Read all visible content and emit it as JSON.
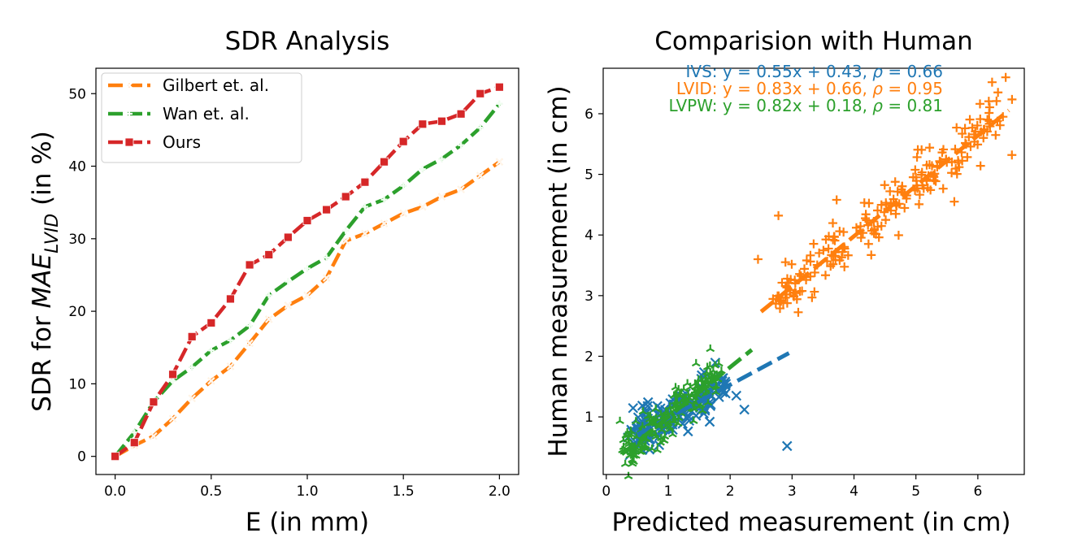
{
  "chart_data": [
    {
      "type": "line",
      "title": "SDR Analysis",
      "xlabel": "E (in mm)",
      "ylabel_prefix": "SDR for ",
      "ylabel_math": "MAE",
      "ylabel_subscript": "LVID",
      "ylabel_suffix": " (in %)",
      "xlim": [
        -0.1,
        2.1
      ],
      "ylim": [
        -2.5,
        53.5
      ],
      "xticks": [
        0.0,
        0.5,
        1.0,
        1.5,
        2.0
      ],
      "xtick_labels": [
        "0.0",
        "0.5",
        "1.0",
        "1.5",
        "2.0"
      ],
      "yticks": [
        0,
        10,
        20,
        30,
        40,
        50
      ],
      "ytick_labels": [
        "0",
        "10",
        "20",
        "30",
        "40",
        "50"
      ],
      "legend_position": "upper-left",
      "x": [
        0.0,
        0.1,
        0.2,
        0.3,
        0.4,
        0.5,
        0.6,
        0.7,
        0.8,
        0.9,
        1.0,
        1.1,
        1.2,
        1.3,
        1.4,
        1.5,
        1.6,
        1.7,
        1.8,
        1.9,
        2.0
      ],
      "series": [
        {
          "name": "Gilbert et. al.",
          "color": "#ff7f0e",
          "marker": "x",
          "values": [
            0,
            1.5,
            2.8,
            5.2,
            8.0,
            10.4,
            12.4,
            15.6,
            18.9,
            20.8,
            22.2,
            24.6,
            29.7,
            30.7,
            32.1,
            33.5,
            34.4,
            35.8,
            36.8,
            38.7,
            40.6
          ]
        },
        {
          "name": "Wan et. al.",
          "color": "#2ca02c",
          "marker": "plus",
          "values": [
            0,
            3.3,
            7.5,
            10.4,
            12.3,
            14.6,
            16.0,
            18.0,
            22.2,
            24.1,
            25.9,
            27.4,
            31.1,
            34.4,
            35.4,
            37.3,
            39.6,
            41.0,
            42.9,
            45.3,
            48.6
          ]
        },
        {
          "name": "Ours",
          "color": "#d62728",
          "marker": "square",
          "values": [
            0,
            1.9,
            7.5,
            11.3,
            16.5,
            18.4,
            21.7,
            26.4,
            27.8,
            30.2,
            32.5,
            34.0,
            35.8,
            37.8,
            40.6,
            43.4,
            45.8,
            46.2,
            47.2,
            50.0,
            50.9
          ]
        }
      ]
    },
    {
      "type": "scatter",
      "title": "Comparision with Human",
      "xlabel": "Predicted measurement (in cm)",
      "ylabel": "Human measurement (in cm)",
      "xlim": [
        -0.05,
        6.75
      ],
      "ylim": [
        0.05,
        6.75
      ],
      "xticks": [
        0,
        1,
        2,
        3,
        4,
        5,
        6
      ],
      "xtick_labels": [
        "0",
        "1",
        "2",
        "3",
        "4",
        "5",
        "6"
      ],
      "yticks": [
        1,
        2,
        3,
        4,
        5,
        6
      ],
      "ytick_labels": [
        "1",
        "2",
        "3",
        "4",
        "5",
        "6"
      ],
      "annotation_position": "top",
      "series": [
        {
          "name": "IVS",
          "color": "#1f77b4",
          "marker": "x",
          "fit_slope": 0.55,
          "fit_intercept": 0.43,
          "fit_range": [
            0.5,
            2.95
          ],
          "equation_prefix": "IVS: y = 0.55x + 0.43, ",
          "equation_rho": "ρ",
          "equation_suffix": " = 0.66",
          "x_range": [
            0.35,
            1.9
          ],
          "n_points": 150,
          "seed": 11,
          "noise": 0.18,
          "outliers": [
            [
              2.92,
              0.52
            ],
            [
              2.23,
              1.12
            ],
            [
              2.1,
              1.35
            ],
            [
              1.92,
              1.58
            ],
            [
              1.67,
              0.92
            ],
            [
              0.38,
              0.37
            ]
          ]
        },
        {
          "name": "LVID",
          "color": "#ff7f0e",
          "marker": "plus",
          "fit_slope": 0.83,
          "fit_intercept": 0.66,
          "fit_range": [
            2.5,
            6.5
          ],
          "equation_prefix": "LVID: y = 0.83x + 0.66, ",
          "equation_rho": "ρ",
          "equation_suffix": " = 0.95",
          "x_range": [
            2.7,
            6.5
          ],
          "n_points": 210,
          "seed": 23,
          "noise": 0.2,
          "outliers": [
            [
              2.45,
              3.6
            ],
            [
              2.78,
              4.32
            ],
            [
              3.72,
              4.58
            ],
            [
              5.62,
              4.55
            ],
            [
              6.55,
              5.32
            ],
            [
              6.45,
              6.6
            ],
            [
              6.23,
              6.52
            ]
          ]
        },
        {
          "name": "LVPW",
          "color": "#2ca02c",
          "marker": "tri",
          "fit_slope": 0.82,
          "fit_intercept": 0.18,
          "fit_range": [
            0.25,
            2.35
          ],
          "equation_prefix": "LVPW: y = 0.82x + 0.18, ",
          "equation_rho": "ρ",
          "equation_suffix": " = 0.81",
          "x_range": [
            0.3,
            1.8
          ],
          "n_points": 200,
          "seed": 37,
          "noise": 0.17,
          "outliers": [
            [
              1.68,
              2.12
            ],
            [
              0.22,
              0.93
            ],
            [
              1.45,
              1.88
            ]
          ]
        }
      ]
    }
  ]
}
